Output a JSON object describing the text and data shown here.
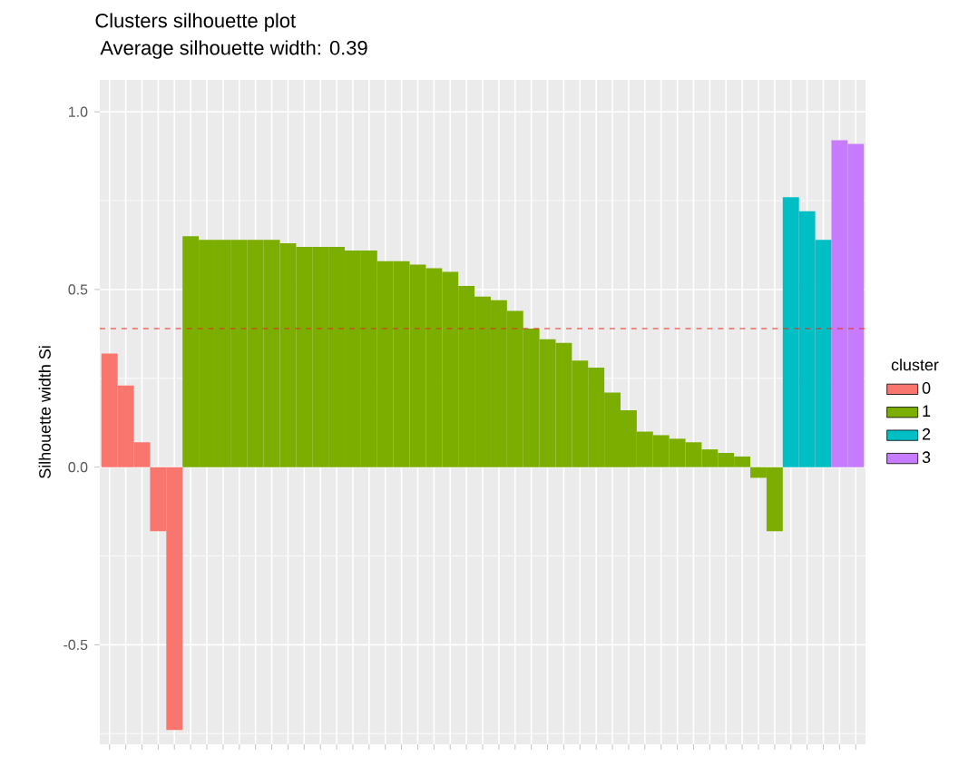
{
  "chart_data": {
    "type": "bar",
    "title": "Clusters silhouette plot",
    "subtitle": "Average silhouette width: 0.39",
    "ylabel": "Silhouette width Si",
    "legend_title": "cluster",
    "legend": "right",
    "grid": true,
    "tick_labels": "y",
    "categories": [
      null,
      null,
      null,
      null,
      null,
      null,
      null,
      null,
      null,
      null,
      null,
      null,
      null,
      null,
      null,
      null,
      null,
      null,
      null,
      null,
      null,
      null,
      null,
      null,
      null,
      null,
      null,
      null,
      null,
      null,
      null,
      null,
      null,
      null,
      null,
      null,
      null,
      null,
      null,
      null,
      null,
      null,
      null,
      null,
      null,
      null,
      null
    ],
    "ylim": [
      -0.78,
      1.09
    ],
    "yticks": [
      -0.5,
      {
        "value": 0,
        "label": "0.0"
      },
      0.5,
      {
        "value": 1,
        "label": "1.0"
      }
    ],
    "ref_lines": [
      {
        "axis": "y",
        "value": 0.39,
        "color": "#e8281e",
        "line_style": "dashed"
      }
    ],
    "series": [
      {
        "name": "0",
        "color": "#f8766d",
        "values": [
          0.32,
          0.23,
          0.07,
          -0.18,
          -0.74,
          null,
          null,
          null,
          null,
          null,
          null,
          null,
          null,
          null,
          null,
          null,
          null,
          null,
          null,
          null,
          null,
          null,
          null,
          null,
          null,
          null,
          null,
          null,
          null,
          null,
          null,
          null,
          null,
          null,
          null,
          null,
          null,
          null,
          null,
          null,
          null,
          null,
          null,
          null,
          null,
          null,
          null
        ]
      },
      {
        "name": "1",
        "color": "#7cae00",
        "values": [
          null,
          null,
          null,
          null,
          null,
          0.65,
          0.64,
          0.64,
          0.64,
          0.64,
          0.64,
          0.63,
          0.62,
          0.62,
          0.62,
          0.61,
          0.61,
          0.58,
          0.58,
          0.57,
          0.56,
          0.55,
          0.51,
          0.48,
          0.47,
          0.44,
          0.39,
          0.36,
          0.35,
          0.3,
          0.28,
          0.21,
          0.16,
          0.1,
          0.09,
          0.08,
          0.07,
          0.05,
          0.04,
          0.03,
          -0.03,
          -0.18,
          null,
          null,
          null,
          null,
          null
        ]
      },
      {
        "name": "2",
        "color": "#00bfc4",
        "values": [
          null,
          null,
          null,
          null,
          null,
          null,
          null,
          null,
          null,
          null,
          null,
          null,
          null,
          null,
          null,
          null,
          null,
          null,
          null,
          null,
          null,
          null,
          null,
          null,
          null,
          null,
          null,
          null,
          null,
          null,
          null,
          null,
          null,
          null,
          null,
          null,
          null,
          null,
          null,
          null,
          null,
          null,
          0.76,
          0.72,
          0.64,
          null,
          null
        ]
      },
      {
        "name": "3",
        "color": "#c77cff",
        "values": [
          null,
          null,
          null,
          null,
          null,
          null,
          null,
          null,
          null,
          null,
          null,
          null,
          null,
          null,
          null,
          null,
          null,
          null,
          null,
          null,
          null,
          null,
          null,
          null,
          null,
          null,
          null,
          null,
          null,
          null,
          null,
          null,
          null,
          null,
          null,
          null,
          null,
          null,
          null,
          null,
          null,
          null,
          null,
          null,
          null,
          0.92,
          0.91
        ]
      }
    ]
  }
}
